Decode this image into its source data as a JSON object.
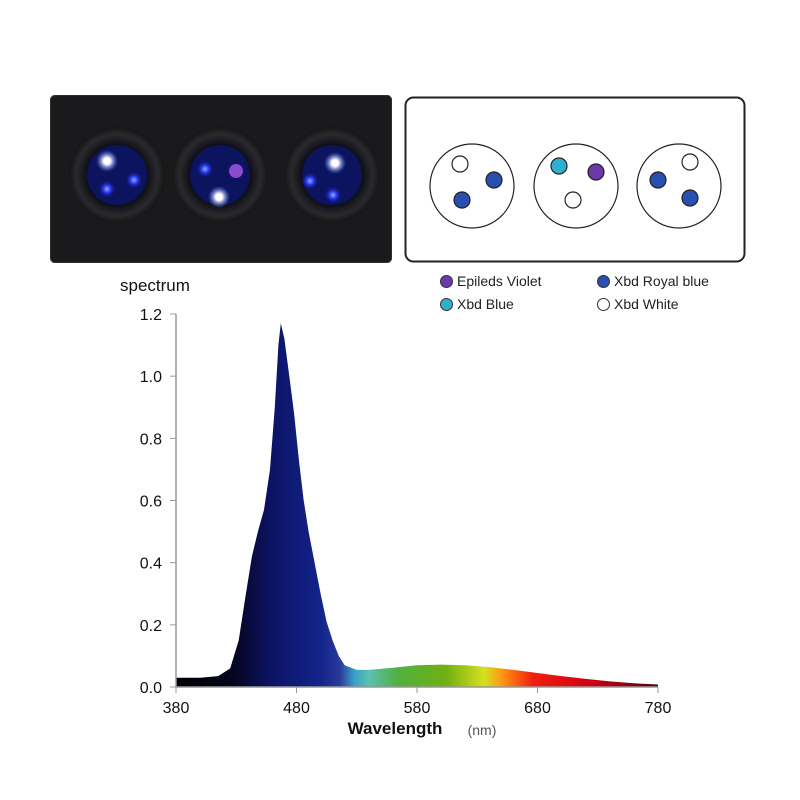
{
  "colors": {
    "violet": "#6a3aa8",
    "blue": "#2fb0d0",
    "royal": "#2b4fb0",
    "white": "#ffffff"
  },
  "legend": [
    {
      "label": "Epileds Violet",
      "color": "#6a3aa8"
    },
    {
      "label": "Xbd Royal blue",
      "color": "#2b4fb0"
    },
    {
      "label": "Xbd Blue",
      "color": "#2fb0d0"
    },
    {
      "label": "Xbd White",
      "color": "#ffffff"
    }
  ],
  "spectrum_title": "spectrum",
  "chart_data": {
    "type": "area",
    "title": "spectrum",
    "xlabel": "Wavelength",
    "xunit": "(nm)",
    "ylabel": "",
    "xlim": [
      380,
      780
    ],
    "ylim": [
      0,
      1.2
    ],
    "xticks": [
      "380",
      "480",
      "580",
      "680",
      "780"
    ],
    "yticks": [
      "0.0",
      "0.2",
      "0.4",
      "0.6",
      "0.8",
      "1.0",
      "1.2"
    ],
    "x": [
      380,
      400,
      415,
      425,
      432,
      438,
      443,
      448,
      453,
      458,
      462,
      465,
      467,
      470,
      474,
      478,
      482,
      486,
      490,
      495,
      500,
      505,
      510,
      515,
      520,
      530,
      540,
      560,
      580,
      600,
      620,
      640,
      660,
      680,
      700,
      720,
      740,
      760,
      780
    ],
    "y": [
      0.03,
      0.03,
      0.035,
      0.06,
      0.15,
      0.3,
      0.42,
      0.5,
      0.57,
      0.7,
      0.9,
      1.1,
      1.17,
      1.12,
      1.0,
      0.88,
      0.73,
      0.6,
      0.5,
      0.4,
      0.3,
      0.21,
      0.15,
      0.1,
      0.07,
      0.055,
      0.055,
      0.062,
      0.07,
      0.072,
      0.07,
      0.064,
      0.055,
      0.045,
      0.035,
      0.026,
      0.018,
      0.012,
      0.008
    ]
  }
}
